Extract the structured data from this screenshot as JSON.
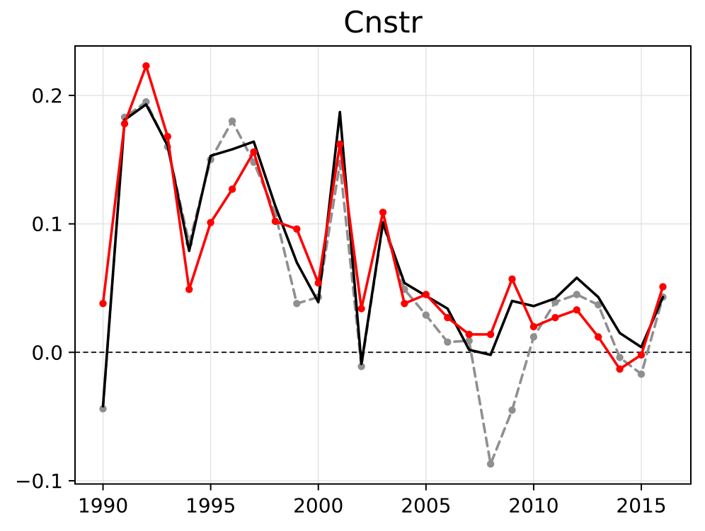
{
  "figure": {
    "title": "Cnstr",
    "background": "#ffffff"
  },
  "chart_data": {
    "type": "line",
    "title": "Cnstr",
    "xlabel": "",
    "ylabel": "",
    "grid": true,
    "zero_line": true,
    "legend_position": "none",
    "xlim": [
      1988.7,
      2017.3
    ],
    "ylim": [
      -0.1025,
      0.2385
    ],
    "xticks": [
      1990,
      1995,
      2000,
      2005,
      2010,
      2015
    ],
    "xtick_labels": [
      "1990",
      "1995",
      "2000",
      "2005",
      "2010",
      "2015"
    ],
    "yticks": [
      -0.1,
      0.0,
      0.1,
      0.2
    ],
    "ytick_labels": [
      "−0.1",
      "0.0",
      "0.1",
      "0.2"
    ],
    "x": [
      1990,
      1991,
      1992,
      1993,
      1994,
      1995,
      1996,
      1997,
      1998,
      1999,
      2000,
      2001,
      2002,
      2003,
      2004,
      2005,
      2006,
      2007,
      2008,
      2009,
      2010,
      2011,
      2012,
      2013,
      2014,
      2015,
      2016
    ],
    "series": [
      {
        "name": "gray-dashed",
        "color": "#8f8f8f",
        "line_style": "dashed",
        "markers": true,
        "values": [
          -0.044,
          0.183,
          0.195,
          0.16,
          0.085,
          0.15,
          0.18,
          0.148,
          0.108,
          0.038,
          0.043,
          0.147,
          -0.011,
          0.1,
          0.049,
          0.029,
          0.008,
          0.009,
          -0.087,
          -0.045,
          0.012,
          0.039,
          0.045,
          0.037,
          -0.004,
          -0.017,
          0.043
        ]
      },
      {
        "name": "black-solid",
        "color": "#000000",
        "line_style": "solid",
        "markers": false,
        "values": [
          -0.042,
          0.181,
          0.193,
          0.161,
          0.079,
          0.153,
          0.158,
          0.164,
          0.114,
          0.07,
          0.039,
          0.187,
          -0.009,
          0.101,
          0.054,
          0.044,
          0.034,
          0.002,
          -0.002,
          0.04,
          0.036,
          0.042,
          0.058,
          0.043,
          0.015,
          0.004,
          0.043
        ]
      },
      {
        "name": "red-markers",
        "color": "#ff0000",
        "line_style": "solid",
        "markers": true,
        "values": [
          0.038,
          0.178,
          0.223,
          0.168,
          0.049,
          0.101,
          0.127,
          0.156,
          0.102,
          0.096,
          0.054,
          0.162,
          0.034,
          0.109,
          0.038,
          0.045,
          0.027,
          0.014,
          0.014,
          0.057,
          0.02,
          0.027,
          0.033,
          0.012,
          -0.013,
          -0.002,
          0.051
        ]
      }
    ],
    "style": {
      "grid_color": "#e2e2e2",
      "spine_color": "#000000",
      "zero_line_color": "#000000",
      "line_width": 3.6,
      "marker_radius": 5.2
    }
  }
}
